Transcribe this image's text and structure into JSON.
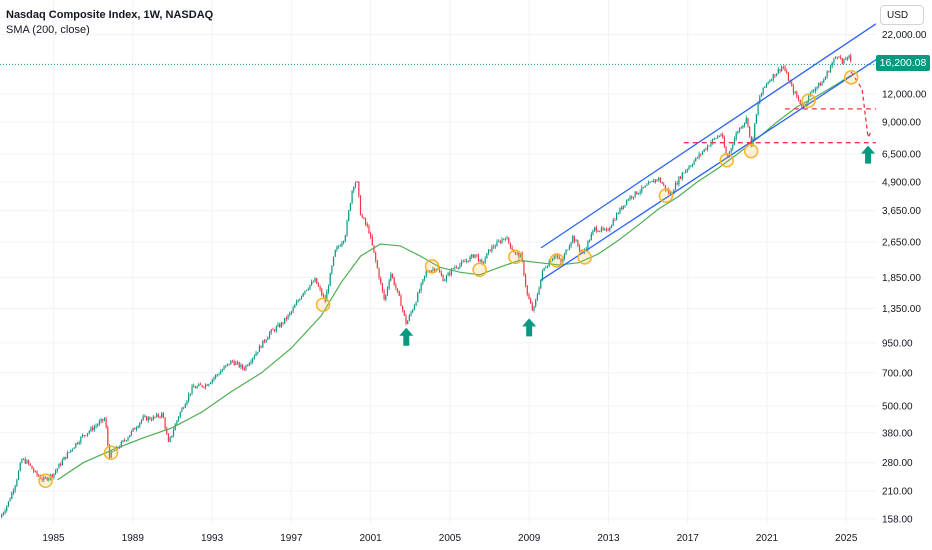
{
  "legend": {
    "title": "Nasdaq Composite Index, 1W, NASDAQ",
    "indicator": "SMA (200, close)"
  },
  "currency_button": "USD",
  "current_price": "16,200.08",
  "colors": {
    "up": "#089981",
    "down": "#f23645",
    "sma": "#4caf50",
    "channel": "#2962ff",
    "circle": "#f7b32b",
    "arrow": "#089981",
    "dashed": "#f23645",
    "price_line": "#089981"
  },
  "chart_data": {
    "type": "line",
    "title": "Nasdaq Composite Index, 1W, NASDAQ",
    "yscale": "log",
    "ylim": [
      150,
      26000
    ],
    "xlim": [
      1982.3,
      2026.5
    ],
    "y_ticks": [
      {
        "value": 22000,
        "label": "22,000.00"
      },
      {
        "value": 12000,
        "label": "12,000.00"
      },
      {
        "value": 9000,
        "label": "9,000.00"
      },
      {
        "value": 6500,
        "label": "6,500.00"
      },
      {
        "value": 4900,
        "label": "4,900.00"
      },
      {
        "value": 3650,
        "label": "3,650.00"
      },
      {
        "value": 2650,
        "label": "2,650.00"
      },
      {
        "value": 1850,
        "label": "1,850.00"
      },
      {
        "value": 1350,
        "label": "1,350.00"
      },
      {
        "value": 950,
        "label": "950.00"
      },
      {
        "value": 700,
        "label": "700.00"
      },
      {
        "value": 500,
        "label": "500.00"
      },
      {
        "value": 380,
        "label": "380.00"
      },
      {
        "value": 280,
        "label": "280.00"
      },
      {
        "value": 210,
        "label": "210.00"
      },
      {
        "value": 158,
        "label": "158.00"
      }
    ],
    "x_ticks": [
      "1985",
      "1989",
      "1993",
      "1997",
      "2001",
      "2005",
      "2009",
      "2013",
      "2017",
      "2021",
      "2025"
    ],
    "x_tick_values": [
      1985,
      1989,
      1993,
      1997,
      2001,
      2005,
      2009,
      2013,
      2017,
      2021,
      2025
    ],
    "series": [
      {
        "name": "Nasdaq Composite Index",
        "points": [
          [
            1982.3,
            160
          ],
          [
            1982.7,
            185
          ],
          [
            1983.1,
            230
          ],
          [
            1983.4,
            290
          ],
          [
            1983.7,
            280
          ],
          [
            1984.1,
            250
          ],
          [
            1984.5,
            235
          ],
          [
            1985.0,
            250
          ],
          [
            1985.5,
            290
          ],
          [
            1986.0,
            330
          ],
          [
            1986.5,
            370
          ],
          [
            1987.0,
            400
          ],
          [
            1987.6,
            440
          ],
          [
            1987.8,
            300
          ],
          [
            1988.3,
            330
          ],
          [
            1988.8,
            370
          ],
          [
            1989.5,
            440
          ],
          [
            1990.0,
            440
          ],
          [
            1990.5,
            460
          ],
          [
            1990.8,
            340
          ],
          [
            1991.3,
            450
          ],
          [
            1992.0,
            600
          ],
          [
            1992.7,
            620
          ],
          [
            1993.5,
            720
          ],
          [
            1994.0,
            790
          ],
          [
            1994.6,
            730
          ],
          [
            1995.3,
            880
          ],
          [
            1995.9,
            1050
          ],
          [
            1996.5,
            1150
          ],
          [
            1997.0,
            1300
          ],
          [
            1997.6,
            1600
          ],
          [
            1998.2,
            1800
          ],
          [
            1998.7,
            1450
          ],
          [
            1999.2,
            2400
          ],
          [
            1999.7,
            2800
          ],
          [
            2000.1,
            4700
          ],
          [
            2000.3,
            5000
          ],
          [
            2000.5,
            3500
          ],
          [
            2000.9,
            3000
          ],
          [
            2001.3,
            2100
          ],
          [
            2001.7,
            1450
          ],
          [
            2002.0,
            1950
          ],
          [
            2002.5,
            1450
          ],
          [
            2002.8,
            1150
          ],
          [
            2003.2,
            1400
          ],
          [
            2003.8,
            1950
          ],
          [
            2004.3,
            2050
          ],
          [
            2004.7,
            1800
          ],
          [
            2005.2,
            2050
          ],
          [
            2005.7,
            2150
          ],
          [
            2006.3,
            2350
          ],
          [
            2006.6,
            2100
          ],
          [
            2007.0,
            2450
          ],
          [
            2007.8,
            2800
          ],
          [
            2008.3,
            2350
          ],
          [
            2008.6,
            2300
          ],
          [
            2008.9,
            1550
          ],
          [
            2009.2,
            1300
          ],
          [
            2009.7,
            2000
          ],
          [
            2010.3,
            2350
          ],
          [
            2010.6,
            2150
          ],
          [
            2011.2,
            2800
          ],
          [
            2011.7,
            2350
          ],
          [
            2012.3,
            3050
          ],
          [
            2012.9,
            2950
          ],
          [
            2013.5,
            3600
          ],
          [
            2014.0,
            4150
          ],
          [
            2014.8,
            4600
          ],
          [
            2015.5,
            5100
          ],
          [
            2016.1,
            4300
          ],
          [
            2016.7,
            5300
          ],
          [
            2017.5,
            6300
          ],
          [
            2018.2,
            7400
          ],
          [
            2018.7,
            8000
          ],
          [
            2018.97,
            6200
          ],
          [
            2019.5,
            8200
          ],
          [
            2020.0,
            9400
          ],
          [
            2020.2,
            6900
          ],
          [
            2020.6,
            11500
          ],
          [
            2021.0,
            13500
          ],
          [
            2021.8,
            16000
          ],
          [
            2022.3,
            12500
          ],
          [
            2022.8,
            10500
          ],
          [
            2023.3,
            12500
          ],
          [
            2023.8,
            13500
          ],
          [
            2024.3,
            16500
          ],
          [
            2024.6,
            18200
          ],
          [
            2024.8,
            16300
          ],
          [
            2025.1,
            17800
          ],
          [
            2025.25,
            16200
          ]
        ]
      },
      {
        "name": "SMA (200, close)",
        "points": [
          [
            1985.2,
            235
          ],
          [
            1986.5,
            280
          ],
          [
            1988.0,
            320
          ],
          [
            1989.5,
            360
          ],
          [
            1991.0,
            400
          ],
          [
            1992.5,
            470
          ],
          [
            1994.0,
            580
          ],
          [
            1995.5,
            700
          ],
          [
            1997.0,
            900
          ],
          [
            1998.5,
            1250
          ],
          [
            1999.5,
            1750
          ],
          [
            2000.5,
            2300
          ],
          [
            2001.5,
            2600
          ],
          [
            2002.5,
            2550
          ],
          [
            2003.5,
            2300
          ],
          [
            2004.5,
            2050
          ],
          [
            2005.5,
            1950
          ],
          [
            2006.5,
            1900
          ],
          [
            2007.5,
            2050
          ],
          [
            2008.5,
            2200
          ],
          [
            2009.5,
            2150
          ],
          [
            2010.5,
            2100
          ],
          [
            2011.5,
            2150
          ],
          [
            2012.5,
            2350
          ],
          [
            2013.5,
            2700
          ],
          [
            2014.5,
            3150
          ],
          [
            2015.5,
            3700
          ],
          [
            2016.5,
            4200
          ],
          [
            2017.5,
            4900
          ],
          [
            2018.5,
            5600
          ],
          [
            2019.5,
            6500
          ],
          [
            2020.5,
            7600
          ],
          [
            2021.5,
            9000
          ],
          [
            2022.5,
            10500
          ],
          [
            2023.5,
            11700
          ],
          [
            2024.5,
            13200
          ],
          [
            2025.25,
            14500
          ]
        ]
      }
    ],
    "channel_lines": [
      [
        [
          2009.6,
          2500
        ],
        [
          2026.5,
          24500
        ]
      ],
      [
        [
          2009.6,
          1800
        ],
        [
          2026.5,
          17000
        ]
      ]
    ],
    "highlight_circles": [
      [
        1984.6,
        233
      ],
      [
        1987.9,
        310
      ],
      [
        1998.6,
        1400
      ],
      [
        2004.1,
        2070
      ],
      [
        2006.5,
        2000
      ],
      [
        2008.3,
        2280
      ],
      [
        2010.4,
        2200
      ],
      [
        2011.8,
        2270
      ],
      [
        2015.9,
        4250
      ],
      [
        2018.97,
        6100
      ],
      [
        2020.2,
        6700
      ],
      [
        2023.1,
        11200
      ],
      [
        2025.25,
        14200
      ]
    ],
    "up_arrows": [
      [
        2002.8,
        1000
      ],
      [
        2009.0,
        1100
      ],
      [
        2026.1,
        6400
      ]
    ],
    "dashed_levels": [
      {
        "value": 10300,
        "from": 2021.9,
        "to": 2026.5
      },
      {
        "value": 7300,
        "from": 2016.8,
        "to": 2026.5
      }
    ],
    "projection_path": [
      [
        2025.25,
        15000
      ],
      [
        2025.8,
        12600
      ],
      [
        2026.1,
        7700
      ],
      [
        2026.3,
        8300
      ]
    ],
    "current_price_value": 16200
  }
}
